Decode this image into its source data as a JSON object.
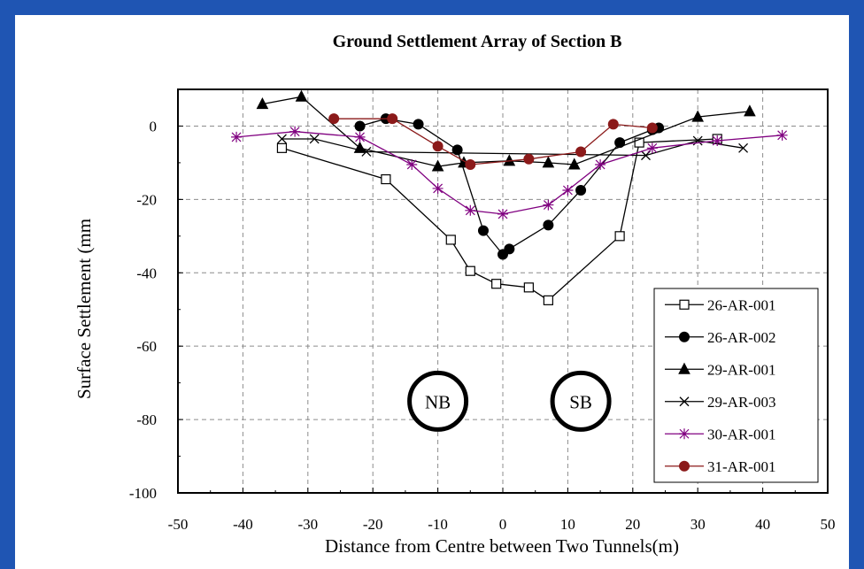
{
  "chart_data": {
    "type": "line",
    "title": "Ground Settlement Array of Section B",
    "xlabel": "Distance from Centre between Two Tunnels(m)",
    "ylabel": "Surface Settlement (mm",
    "xlim": [
      -50,
      50
    ],
    "ylim": [
      -100,
      10
    ],
    "x_ticks": [
      "-50",
      "-40",
      "-30",
      "-20",
      "-10",
      "0",
      "10",
      "20",
      "30",
      "40",
      "50"
    ],
    "y_ticks": [
      "0",
      "-20",
      "-40",
      "-60",
      "-80",
      "-100"
    ],
    "grid": "dashed",
    "legend_position": "bottom-right",
    "tunnels": [
      {
        "label": "NB",
        "x": -10,
        "y": -75
      },
      {
        "label": "SB",
        "x": 12,
        "y": -75
      }
    ],
    "series": [
      {
        "name": "26-AR-001",
        "marker": "open-square",
        "color": "#000000",
        "x": [
          -34,
          -18,
          -8,
          -5,
          -1,
          4,
          7,
          18,
          21,
          33
        ],
        "y": [
          -6,
          -14.5,
          -31,
          -39.5,
          -43,
          -44,
          -47.5,
          -30,
          -4.5,
          -3.5
        ]
      },
      {
        "name": "26-AR-002",
        "marker": "filled-circle",
        "color": "#000000",
        "x": [
          -22,
          -18,
          -13,
          -7,
          -3,
          0,
          1,
          7,
          12,
          18,
          23,
          24
        ],
        "y": [
          0,
          2,
          0.5,
          -6.5,
          -28.5,
          -35,
          -33.5,
          -27,
          -17.5,
          -4.5,
          -1,
          -0.5
        ]
      },
      {
        "name": "29-AR-001",
        "marker": "filled-triangle",
        "color": "#000000",
        "x": [
          -37,
          -31,
          -22,
          -10,
          -6,
          1,
          7,
          11,
          30,
          38
        ],
        "y": [
          6,
          8,
          -6,
          -11,
          -10,
          -9.5,
          -10,
          -10.5,
          2.5,
          4
        ]
      },
      {
        "name": "29-AR-003",
        "marker": "x",
        "color": "#000000",
        "x": [
          -34,
          -29,
          -21,
          22,
          30,
          37
        ],
        "y": [
          -3.5,
          -3.5,
          -7,
          -8,
          -4,
          -6
        ]
      },
      {
        "name": "30-AR-001",
        "marker": "star",
        "color": "#800080",
        "x": [
          -41,
          -32,
          -22,
          -14,
          -10,
          -5,
          0,
          7,
          10,
          15,
          23,
          33,
          43
        ],
        "y": [
          -3,
          -1.5,
          -3,
          -10.5,
          -17,
          -23,
          -24,
          -21.5,
          -17.5,
          -10.5,
          -6,
          -4,
          -2.5
        ]
      },
      {
        "name": "31-AR-001",
        "marker": "filled-circle",
        "color": "#8b1a1a",
        "x": [
          -26,
          -17,
          -10,
          -5,
          4,
          12,
          17,
          23
        ],
        "y": [
          2,
          2,
          -5.5,
          -10.5,
          -9,
          -7,
          0.5,
          -0.5
        ]
      }
    ]
  }
}
